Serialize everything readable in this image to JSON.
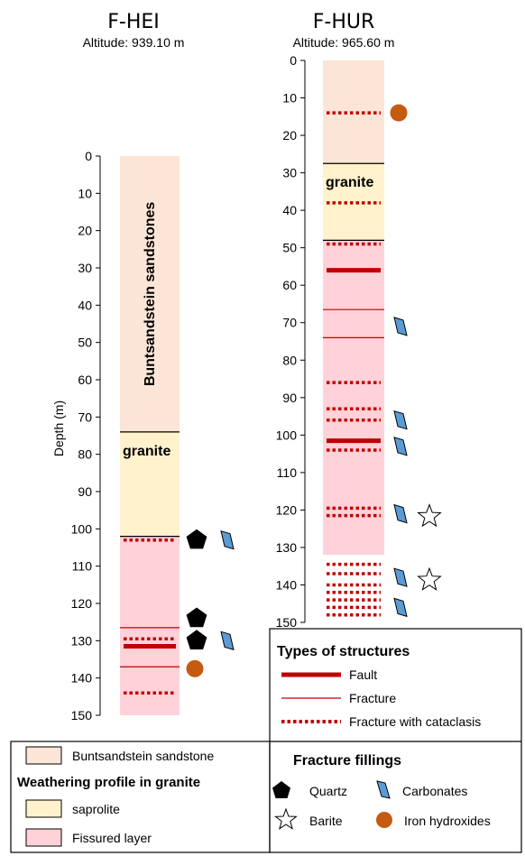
{
  "columns": [
    {
      "name": "F-HEI",
      "altitude": "Altitude: 939.10 m",
      "ticks": [
        "0",
        "10",
        "20",
        "30",
        "40",
        "50",
        "60",
        "70",
        "80",
        "90",
        "100",
        "110",
        "120",
        "130",
        "140",
        "150"
      ],
      "depth_max": 150,
      "layers": [
        {
          "type": "sandstone",
          "top": 0,
          "bottom": 74,
          "label": "Buntsandstein sandstones"
        },
        {
          "type": "saprolite",
          "top": 74,
          "bottom": 102,
          "label": "granite"
        },
        {
          "type": "fissured",
          "top": 102,
          "bottom": 150,
          "label": ""
        }
      ],
      "structures": [
        {
          "depth": 103,
          "type": "cataclasis"
        },
        {
          "depth": 126.5,
          "type": "fracture"
        },
        {
          "depth": 129.5,
          "type": "cataclasis"
        },
        {
          "depth": 131.5,
          "type": "fault"
        },
        {
          "depth": 137,
          "type": "fracture"
        },
        {
          "depth": 144,
          "type": "cataclasis"
        }
      ],
      "fillings": [
        {
          "depth": 103,
          "items": [
            "quartz",
            "carbonates"
          ]
        },
        {
          "depth": 124,
          "items": [
            "quartz"
          ]
        },
        {
          "depth": 130,
          "items": [
            "quartz",
            "carbonates"
          ]
        },
        {
          "depth": 137.5,
          "items": [
            "iron"
          ]
        }
      ]
    },
    {
      "name": "F-HUR",
      "altitude": "Altitude: 965.60 m",
      "ticks": [
        "0",
        "10",
        "20",
        "30",
        "40",
        "50",
        "60",
        "70",
        "80",
        "90",
        "100",
        "110",
        "120",
        "130",
        "140",
        "150"
      ],
      "depth_max": 150,
      "layers": [
        {
          "type": "sandstone",
          "top": 0,
          "bottom": 27.5,
          "label": ""
        },
        {
          "type": "saprolite",
          "top": 27.5,
          "bottom": 48,
          "label": "granite"
        },
        {
          "type": "fissured",
          "top": 48,
          "bottom": 132,
          "label": ""
        },
        {
          "type": "white",
          "top": 132,
          "bottom": 150,
          "label": ""
        }
      ],
      "structures": [
        {
          "depth": 14,
          "type": "cataclasis"
        },
        {
          "depth": 38,
          "type": "cataclasis"
        },
        {
          "depth": 49,
          "type": "cataclasis"
        },
        {
          "depth": 56,
          "type": "fault"
        },
        {
          "depth": 66.5,
          "type": "fracture"
        },
        {
          "depth": 74,
          "type": "fracture"
        },
        {
          "depth": 86,
          "type": "cataclasis"
        },
        {
          "depth": 93,
          "type": "cataclasis"
        },
        {
          "depth": 96,
          "type": "cataclasis"
        },
        {
          "depth": 101.5,
          "type": "fault"
        },
        {
          "depth": 104,
          "type": "cataclasis"
        },
        {
          "depth": 119.5,
          "type": "cataclasis"
        },
        {
          "depth": 121.5,
          "type": "cataclasis"
        },
        {
          "depth": 134.5,
          "type": "cataclasis"
        },
        {
          "depth": 137,
          "type": "cataclasis"
        },
        {
          "depth": 140,
          "type": "cataclasis"
        },
        {
          "depth": 142,
          "type": "cataclasis"
        },
        {
          "depth": 144,
          "type": "cataclasis"
        },
        {
          "depth": 146,
          "type": "cataclasis"
        },
        {
          "depth": 148,
          "type": "cataclasis"
        }
      ],
      "fillings": [
        {
          "depth": 14,
          "items": [
            "iron"
          ]
        },
        {
          "depth": 71,
          "items": [
            "carbonates"
          ]
        },
        {
          "depth": 96,
          "items": [
            "carbonates"
          ]
        },
        {
          "depth": 103,
          "items": [
            "carbonates"
          ]
        },
        {
          "depth": 121,
          "items": [
            "carbonates",
            "barite"
          ]
        },
        {
          "depth": 138,
          "items": [
            "carbonates",
            "barite"
          ]
        },
        {
          "depth": 146,
          "items": [
            "carbonates"
          ]
        }
      ]
    }
  ],
  "y_axis_label": "Depth (m)",
  "legend_structures": {
    "title": "Types of structures",
    "items": [
      {
        "type": "fault",
        "label": "Fault"
      },
      {
        "type": "fracture",
        "label": "Fracture"
      },
      {
        "type": "cataclasis",
        "label": "Fracture with cataclasis"
      }
    ]
  },
  "legend_layers": {
    "sandstone_label": "Buntsandstein  sandstone",
    "heading": "Weathering profile in granite",
    "saprolite_label": "saprolite",
    "fissured_label": "Fissured layer"
  },
  "legend_fillings": {
    "title": "Fracture fillings",
    "quartz": "Quartz",
    "carbonates": "Carbonates",
    "barite": "Barite",
    "iron": "Iron hydroxides"
  },
  "colors": {
    "sandstone": "#fbe5d6",
    "saprolite": "#fff2cc",
    "fissured": "#ffd1d8",
    "structure": "#c00000",
    "carbonate": "#5b9bd5",
    "iron": "#c55a11",
    "quartz": "#000000"
  }
}
